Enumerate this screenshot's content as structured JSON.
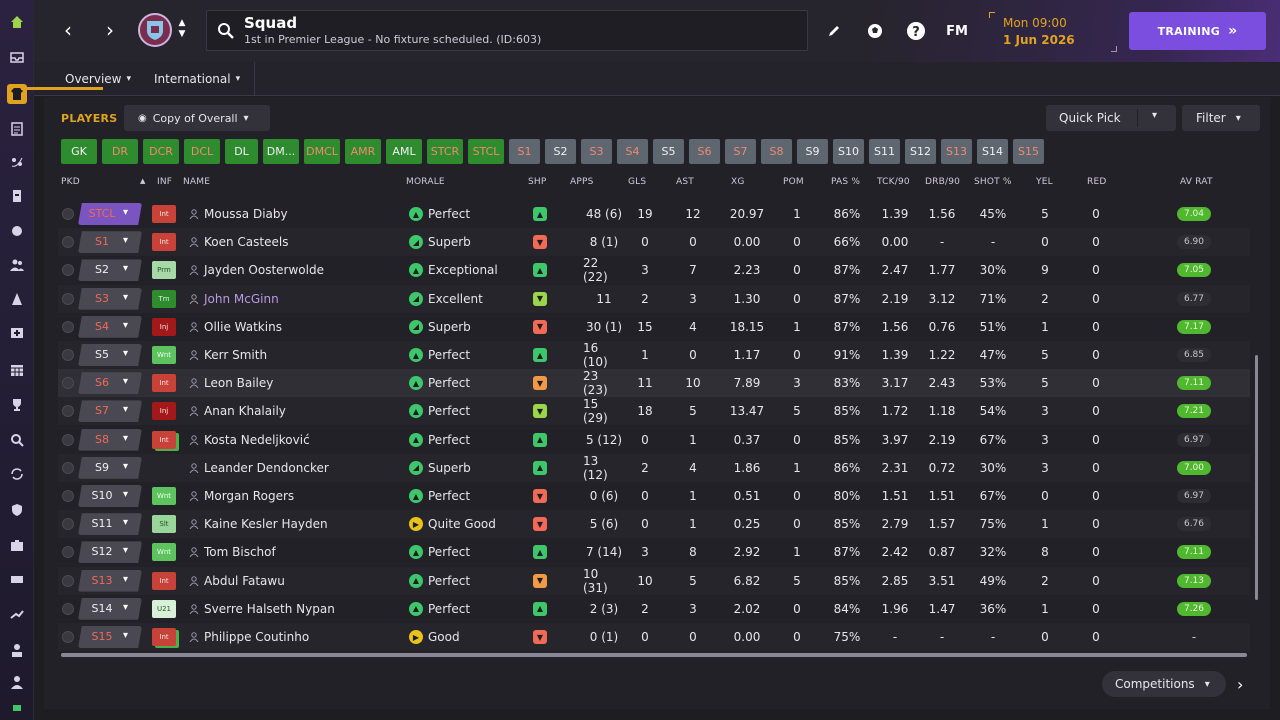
{
  "header": {
    "title": "Squad",
    "subtitle": "1st in Premier League - No fixture scheduled. (ID:603)",
    "time": "Mon 09:00",
    "date": "1 Jun 2026",
    "training_label": "TRAINING",
    "fm_label": "FM"
  },
  "subnav": {
    "tabs": [
      {
        "label": "Overview",
        "active": true
      },
      {
        "label": "International",
        "active": false
      }
    ]
  },
  "panel": {
    "players_label": "PLAYERS",
    "view_select": "Copy of Overall",
    "quick_pick": "Quick Pick",
    "filter": "Filter",
    "competitions": "Competitions"
  },
  "position_pills": [
    {
      "label": "GK",
      "style": "g"
    },
    {
      "label": "DR",
      "style": "gr"
    },
    {
      "label": "DCR",
      "style": "gr"
    },
    {
      "label": "DCL",
      "style": "gr"
    },
    {
      "label": "DL",
      "style": "g"
    },
    {
      "label": "DM...",
      "style": "g"
    },
    {
      "label": "DMCL",
      "style": "gr"
    },
    {
      "label": "AMR",
      "style": "gr"
    },
    {
      "label": "AML",
      "style": "g"
    },
    {
      "label": "STCR",
      "style": "gr"
    },
    {
      "label": "STCL",
      "style": "gr"
    },
    {
      "label": "S1",
      "style": "sr"
    },
    {
      "label": "S2",
      "style": "s"
    },
    {
      "label": "S3",
      "style": "sr"
    },
    {
      "label": "S4",
      "style": "sr"
    },
    {
      "label": "S5",
      "style": "s"
    },
    {
      "label": "S6",
      "style": "sr"
    },
    {
      "label": "S7",
      "style": "sr"
    },
    {
      "label": "S8",
      "style": "sr"
    },
    {
      "label": "S9",
      "style": "s"
    },
    {
      "label": "S10",
      "style": "s"
    },
    {
      "label": "S11",
      "style": "s"
    },
    {
      "label": "S12",
      "style": "s"
    },
    {
      "label": "S13",
      "style": "sr"
    },
    {
      "label": "S14",
      "style": "s"
    },
    {
      "label": "S15",
      "style": "sr"
    }
  ],
  "columns": [
    "PKD",
    "INF",
    "NAME",
    "MORALE",
    "SHP",
    "APPS",
    "GLS",
    "AST",
    "XG",
    "POM",
    "PAS %",
    "TCK/90",
    "DRB/90",
    "SHOT %",
    "YEL",
    "RED",
    "AV RAT"
  ],
  "players": [
    {
      "pkd": "STCL",
      "pkd_red": true,
      "pkd_selected": true,
      "inf": "Int",
      "inf_style": "int",
      "inf_double": false,
      "name": "Moussa Diaby",
      "name_color": "",
      "morale_icon": "arrow-up",
      "morale_color": "green",
      "morale": "Perfect",
      "shp": "green",
      "apps": "48 (6)",
      "gls": "19",
      "ast": "12",
      "xg": "20.97",
      "pom": "1",
      "pas": "86%",
      "tck": "1.39",
      "drb": "1.56",
      "shot": "45%",
      "yel": "5",
      "red": "0",
      "avrat": "7.04",
      "avrat_style": "green"
    },
    {
      "pkd": "S1",
      "pkd_red": true,
      "pkd_selected": false,
      "inf": "Int",
      "inf_style": "int",
      "inf_double": false,
      "name": "Koen Casteels",
      "name_color": "",
      "morale_icon": "arrow-upright",
      "morale_color": "green",
      "morale": "Superb",
      "shp": "red",
      "apps": "8 (1)",
      "gls": "0",
      "ast": "0",
      "xg": "0.00",
      "pom": "0",
      "pas": "66%",
      "tck": "0.00",
      "drb": "-",
      "shot": "-",
      "yel": "0",
      "red": "0",
      "avrat": "6.90",
      "avrat_style": "grey"
    },
    {
      "pkd": "S2",
      "pkd_red": false,
      "pkd_selected": false,
      "inf": "Prm",
      "inf_style": "prm",
      "inf_double": false,
      "name": "Jayden Oosterwolde",
      "name_color": "",
      "morale_icon": "arrow-up",
      "morale_color": "green",
      "morale": "Exceptional",
      "shp": "green",
      "apps": "22 (22)",
      "gls": "3",
      "ast": "7",
      "xg": "2.23",
      "pom": "0",
      "pas": "87%",
      "tck": "2.47",
      "drb": "1.77",
      "shot": "30%",
      "yel": "9",
      "red": "0",
      "avrat": "7.05",
      "avrat_style": "green"
    },
    {
      "pkd": "S3",
      "pkd_red": true,
      "pkd_selected": false,
      "inf": "Tm",
      "inf_style": "tm",
      "inf_double": false,
      "name": "John McGinn",
      "name_color": "purple",
      "morale_icon": "arrow-upright",
      "morale_color": "green",
      "morale": "Excellent",
      "shp": "lime",
      "apps": "11",
      "gls": "2",
      "ast": "3",
      "xg": "1.30",
      "pom": "0",
      "pas": "87%",
      "tck": "2.19",
      "drb": "3.12",
      "shot": "71%",
      "yel": "2",
      "red": "0",
      "avrat": "6.77",
      "avrat_style": "grey"
    },
    {
      "pkd": "S4",
      "pkd_red": true,
      "pkd_selected": false,
      "inf": "Inj",
      "inf_style": "inj",
      "inf_double": false,
      "name": "Ollie Watkins",
      "name_color": "",
      "morale_icon": "arrow-upright",
      "morale_color": "green",
      "morale": "Superb",
      "shp": "red",
      "apps": "30 (1)",
      "gls": "15",
      "ast": "4",
      "xg": "18.15",
      "pom": "1",
      "pas": "87%",
      "tck": "1.56",
      "drb": "0.76",
      "shot": "51%",
      "yel": "1",
      "red": "0",
      "avrat": "7.17",
      "avrat_style": "green"
    },
    {
      "pkd": "S5",
      "pkd_red": false,
      "pkd_selected": false,
      "inf": "Wnt",
      "inf_style": "wnt",
      "inf_double": false,
      "name": "Kerr Smith",
      "name_color": "",
      "morale_icon": "arrow-up",
      "morale_color": "green",
      "morale": "Perfect",
      "shp": "green",
      "apps": "16 (10)",
      "gls": "1",
      "ast": "0",
      "xg": "1.17",
      "pom": "0",
      "pas": "91%",
      "tck": "1.39",
      "drb": "1.22",
      "shot": "47%",
      "yel": "5",
      "red": "0",
      "avrat": "6.85",
      "avrat_style": "grey"
    },
    {
      "pkd": "S6",
      "pkd_red": true,
      "pkd_selected": false,
      "inf": "Int",
      "inf_style": "int",
      "inf_double": false,
      "name": "Leon Bailey",
      "name_color": "",
      "morale_icon": "arrow-up",
      "morale_color": "green",
      "morale": "Perfect",
      "shp": "orange",
      "apps": "23 (23)",
      "gls": "11",
      "ast": "10",
      "xg": "7.89",
      "pom": "3",
      "pas": "83%",
      "tck": "3.17",
      "drb": "2.43",
      "shot": "53%",
      "yel": "5",
      "red": "0",
      "avrat": "7.11",
      "avrat_style": "green"
    },
    {
      "pkd": "S7",
      "pkd_red": true,
      "pkd_selected": false,
      "inf": "Inj",
      "inf_style": "inj",
      "inf_double": false,
      "name": "Anan Khalaily",
      "name_color": "",
      "morale_icon": "arrow-up",
      "morale_color": "green",
      "morale": "Perfect",
      "shp": "lime",
      "apps": "15 (29)",
      "gls": "18",
      "ast": "5",
      "xg": "13.47",
      "pom": "5",
      "pas": "85%",
      "tck": "1.72",
      "drb": "1.18",
      "shot": "54%",
      "yel": "3",
      "red": "0",
      "avrat": "7.21",
      "avrat_style": "green"
    },
    {
      "pkd": "S8",
      "pkd_red": true,
      "pkd_selected": false,
      "inf": "Int",
      "inf_style": "int",
      "inf_double": true,
      "name": "Kosta Nedeljković",
      "name_color": "",
      "morale_icon": "arrow-up",
      "morale_color": "green",
      "morale": "Perfect",
      "shp": "green",
      "apps": "5 (12)",
      "gls": "0",
      "ast": "1",
      "xg": "0.37",
      "pom": "0",
      "pas": "85%",
      "tck": "3.97",
      "drb": "2.19",
      "shot": "67%",
      "yel": "3",
      "red": "0",
      "avrat": "6.97",
      "avrat_style": "grey"
    },
    {
      "pkd": "S9",
      "pkd_red": false,
      "pkd_selected": false,
      "inf": "",
      "inf_style": "",
      "inf_double": false,
      "name": "Leander Dendoncker",
      "name_color": "",
      "morale_icon": "arrow-upright",
      "morale_color": "green",
      "morale": "Superb",
      "shp": "green",
      "apps": "13 (12)",
      "gls": "2",
      "ast": "4",
      "xg": "1.86",
      "pom": "1",
      "pas": "86%",
      "tck": "2.31",
      "drb": "0.72",
      "shot": "30%",
      "yel": "3",
      "red": "0",
      "avrat": "7.00",
      "avrat_style": "green"
    },
    {
      "pkd": "S10",
      "pkd_red": false,
      "pkd_selected": false,
      "inf": "Wnt",
      "inf_style": "wnt",
      "inf_double": false,
      "name": "Morgan Rogers",
      "name_color": "",
      "morale_icon": "arrow-up",
      "morale_color": "green",
      "morale": "Perfect",
      "shp": "red",
      "apps": "0 (6)",
      "gls": "0",
      "ast": "1",
      "xg": "0.51",
      "pom": "0",
      "pas": "80%",
      "tck": "1.51",
      "drb": "1.51",
      "shot": "67%",
      "yel": "0",
      "red": "0",
      "avrat": "6.97",
      "avrat_style": "grey"
    },
    {
      "pkd": "S11",
      "pkd_red": false,
      "pkd_selected": false,
      "inf": "Slt",
      "inf_style": "slt",
      "inf_double": false,
      "name": "Kaine Kesler Hayden",
      "name_color": "",
      "morale_icon": "arrow-right",
      "morale_color": "yellow",
      "morale": "Quite Good",
      "shp": "red",
      "apps": "5 (6)",
      "gls": "0",
      "ast": "1",
      "xg": "0.25",
      "pom": "0",
      "pas": "85%",
      "tck": "2.79",
      "drb": "1.57",
      "shot": "75%",
      "yel": "1",
      "red": "0",
      "avrat": "6.76",
      "avrat_style": "grey"
    },
    {
      "pkd": "S12",
      "pkd_red": false,
      "pkd_selected": false,
      "inf": "Wnt",
      "inf_style": "wnt",
      "inf_double": false,
      "name": "Tom Bischof",
      "name_color": "",
      "morale_icon": "arrow-up",
      "morale_color": "green",
      "morale": "Perfect",
      "shp": "green",
      "apps": "7 (14)",
      "gls": "3",
      "ast": "8",
      "xg": "2.92",
      "pom": "1",
      "pas": "87%",
      "tck": "2.42",
      "drb": "0.87",
      "shot": "32%",
      "yel": "8",
      "red": "0",
      "avrat": "7.11",
      "avrat_style": "green"
    },
    {
      "pkd": "S13",
      "pkd_red": true,
      "pkd_selected": false,
      "inf": "Int",
      "inf_style": "int",
      "inf_double": false,
      "name": "Abdul Fatawu",
      "name_color": "",
      "morale_icon": "arrow-up",
      "morale_color": "green",
      "morale": "Perfect",
      "shp": "orange",
      "apps": "10 (31)",
      "gls": "10",
      "ast": "5",
      "xg": "6.82",
      "pom": "5",
      "pas": "85%",
      "tck": "2.85",
      "drb": "3.51",
      "shot": "49%",
      "yel": "2",
      "red": "0",
      "avrat": "7.13",
      "avrat_style": "green"
    },
    {
      "pkd": "S14",
      "pkd_red": false,
      "pkd_selected": false,
      "inf": "U21",
      "inf_style": "u21",
      "inf_double": false,
      "name": "Sverre Halseth Nypan",
      "name_color": "",
      "morale_icon": "arrow-up",
      "morale_color": "green",
      "morale": "Perfect",
      "shp": "green",
      "apps": "2 (3)",
      "gls": "2",
      "ast": "3",
      "xg": "2.02",
      "pom": "0",
      "pas": "84%",
      "tck": "1.96",
      "drb": "1.47",
      "shot": "36%",
      "yel": "1",
      "red": "0",
      "avrat": "7.26",
      "avrat_style": "green"
    },
    {
      "pkd": "S15",
      "pkd_red": true,
      "pkd_selected": false,
      "inf": "Int",
      "inf_style": "int",
      "inf_double": true,
      "name": "Philippe Coutinho",
      "name_color": "",
      "morale_icon": "arrow-right",
      "morale_color": "yellow",
      "morale": "Good",
      "shp": "red",
      "apps": "0 (1)",
      "gls": "0",
      "ast": "0",
      "xg": "0.00",
      "pom": "0",
      "pas": "75%",
      "tck": "-",
      "drb": "-",
      "shot": "-",
      "yel": "0",
      "red": "0",
      "avrat": "-",
      "avrat_style": "grey"
    }
  ]
}
